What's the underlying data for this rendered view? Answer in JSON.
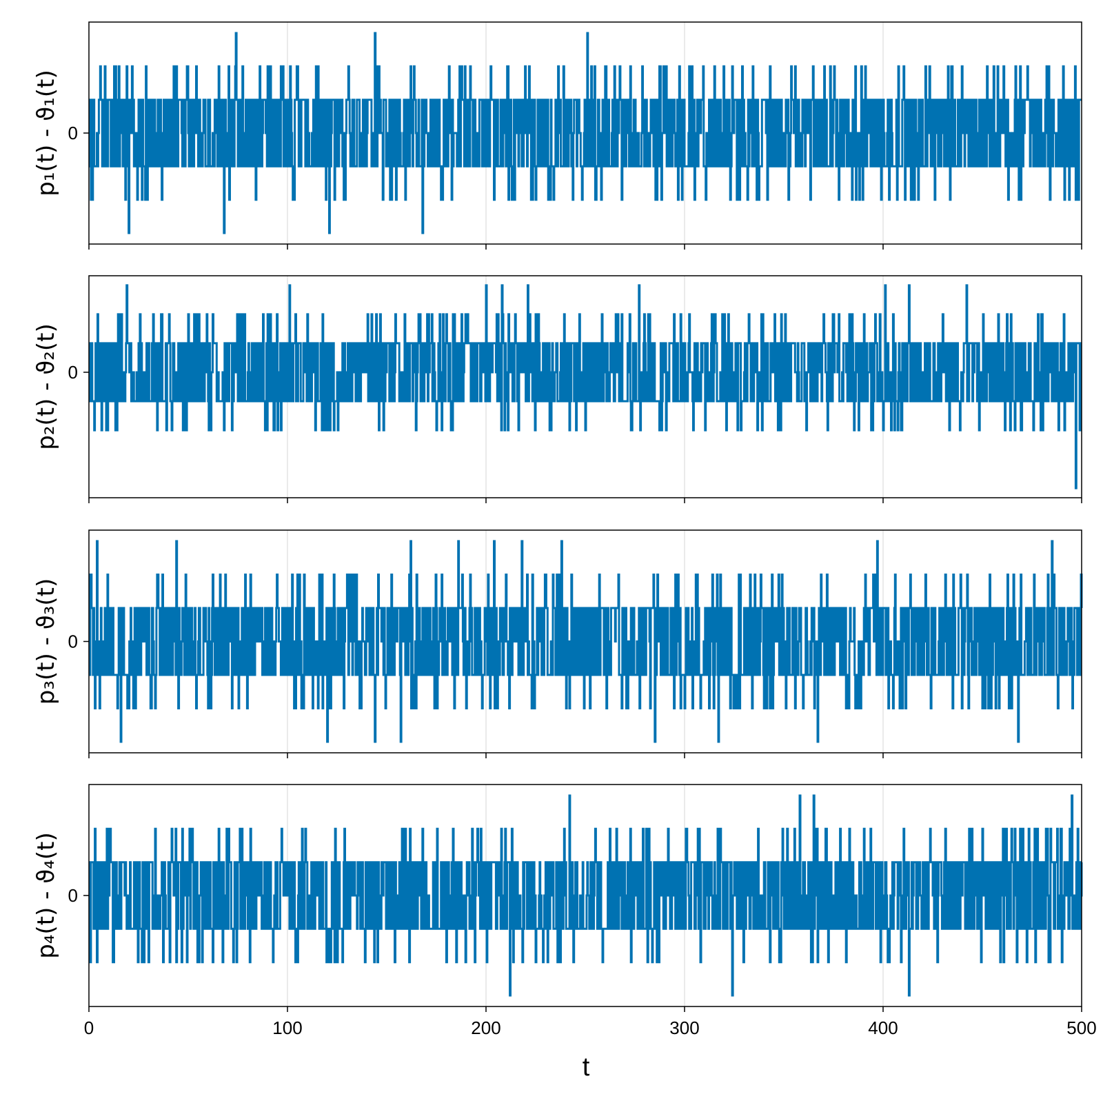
{
  "chart_data": [
    {
      "type": "line",
      "ylabel": "p₁(t) - ϑ₁(t)",
      "xlabel": "",
      "xlim": [
        0,
        500
      ],
      "x_ticks": [
        0,
        100,
        200,
        300,
        400,
        500
      ],
      "y_ticks": [
        "0"
      ],
      "grid": true,
      "series": [
        {
          "color": "#0072b2",
          "seed": 11,
          "levels": [
            -3,
            -2,
            -1,
            0,
            1,
            2,
            3
          ],
          "top_spikes": [
            74,
            144,
            251
          ],
          "bottom_spikes": [
            20,
            68,
            121,
            168
          ]
        }
      ]
    },
    {
      "type": "line",
      "ylabel": "p₂(t) - ϑ₂(t)",
      "xlabel": "",
      "xlim": [
        0,
        500
      ],
      "x_ticks": [
        0,
        100,
        200,
        300,
        400,
        500
      ],
      "y_ticks": [
        "0"
      ],
      "grid": true,
      "series": [
        {
          "color": "#0072b2",
          "seed": 23,
          "levels": [
            -4,
            -3,
            -2,
            -1,
            0,
            1,
            2,
            3
          ],
          "top_spikes": [
            19,
            101,
            200,
            208,
            221,
            277,
            401,
            413,
            442
          ],
          "bottom_spikes": [
            497
          ]
        }
      ]
    },
    {
      "type": "line",
      "ylabel": "p₃(t) - ϑ₃(t)",
      "xlabel": "",
      "xlim": [
        0,
        500
      ],
      "x_ticks": [
        0,
        100,
        200,
        300,
        400,
        500
      ],
      "y_ticks": [
        "0"
      ],
      "grid": true,
      "series": [
        {
          "color": "#0072b2",
          "seed": 37,
          "levels": [
            -3,
            -2,
            -1,
            0,
            1,
            2,
            3
          ],
          "top_spikes": [
            4,
            44,
            162,
            186,
            204,
            218,
            238,
            397,
            485
          ],
          "bottom_spikes": [
            16,
            120,
            144,
            157,
            285,
            317,
            367,
            468
          ]
        }
      ]
    },
    {
      "type": "line",
      "ylabel": "p₄(t) - ϑ₄(t)",
      "xlabel": "t",
      "xlim": [
        0,
        500
      ],
      "x_ticks": [
        0,
        100,
        200,
        300,
        400,
        500
      ],
      "y_ticks": [
        "0"
      ],
      "grid": true,
      "series": [
        {
          "color": "#0072b2",
          "seed": 53,
          "levels": [
            -3,
            -2,
            -1,
            0,
            1,
            2,
            3
          ],
          "top_spikes": [
            242,
            358,
            365,
            495
          ],
          "bottom_spikes": [
            212,
            324,
            413
          ]
        }
      ]
    }
  ]
}
